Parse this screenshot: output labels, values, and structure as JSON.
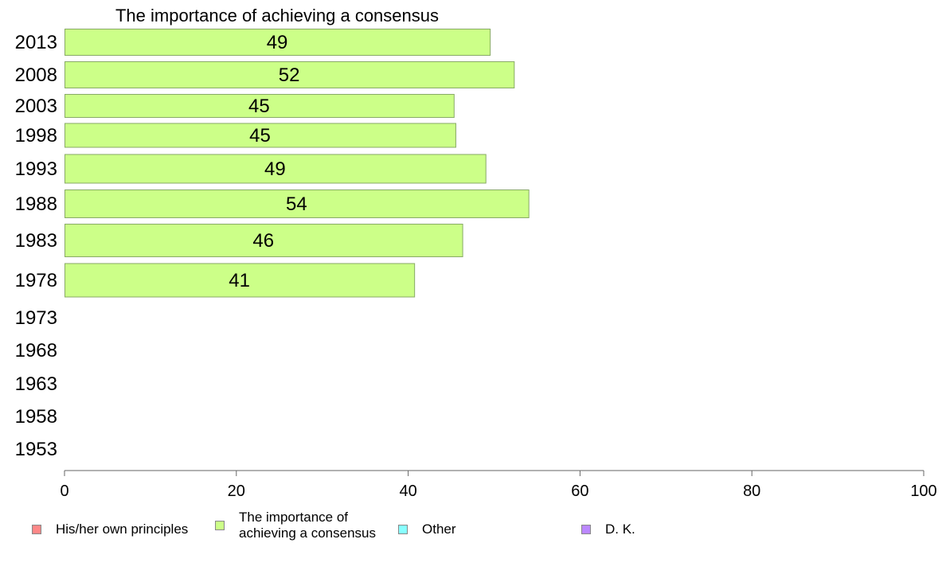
{
  "chart_data": {
    "type": "bar",
    "orientation": "horizontal",
    "title": "The importance of achieving a consensus",
    "categories": [
      "2013",
      "2008",
      "2003",
      "1998",
      "1993",
      "1988",
      "1983",
      "1978",
      "1973",
      "1968",
      "1963",
      "1958",
      "1953"
    ],
    "series": [
      {
        "name": "The importance of achieving a consensus",
        "color": "#ccff88",
        "values": [
          49.5,
          52.3,
          45.3,
          45.5,
          49,
          54,
          46.3,
          40.7,
          null,
          null,
          null,
          null,
          null
        ],
        "labels": [
          "49",
          "52",
          "45",
          "45",
          "49",
          "54",
          "46",
          "41",
          "",
          "",
          "",
          "",
          ""
        ]
      }
    ],
    "xlim": [
      0,
      100
    ],
    "xticks": [
      "0",
      "20",
      "40",
      "60",
      "80",
      "100"
    ],
    "grid": false,
    "legend_position": "bottom",
    "legend": [
      {
        "label": "His/her own principles",
        "color": "#ff8888"
      },
      {
        "label": "The importance of\nachieving a consensus",
        "color": "#ccff88"
      },
      {
        "label": "Other",
        "color": "#88ffff"
      },
      {
        "label": "D. K.",
        "color": "#bb88ff"
      }
    ]
  }
}
